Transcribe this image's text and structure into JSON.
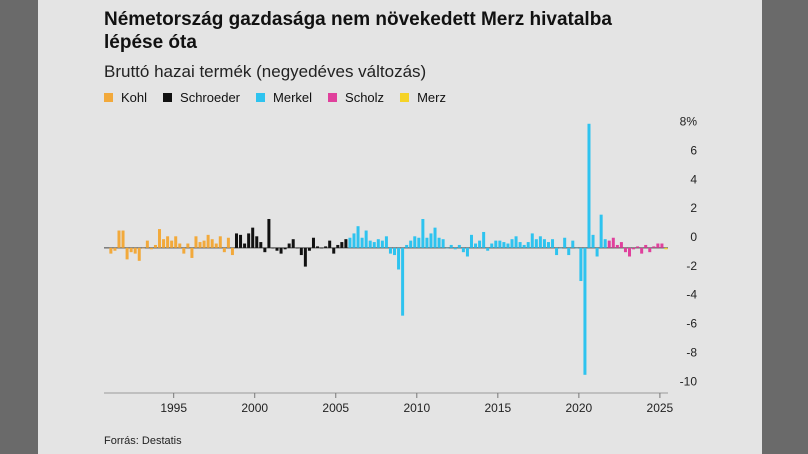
{
  "chart_data": {
    "type": "bar",
    "title": "Németország gazdasága nem növekedett Merz hivatalba lépése óta",
    "subtitle": "Bruttó hazai termék (negyedéves változás)",
    "source": "Forrás: Destatis",
    "xlim": [
      1990.7,
      2025.5
    ],
    "xticks": [
      1995,
      2000,
      2005,
      2010,
      2015,
      2020,
      2025
    ],
    "ylim": [
      -10.2,
      9
    ],
    "yticks": [
      {
        "value": 8,
        "label": "8%"
      },
      6,
      4,
      2,
      0,
      -2,
      -4,
      -6,
      -8,
      -10
    ],
    "series": [
      {
        "name": "Kohl",
        "color": "#f2a93b",
        "x": [
          1991.125,
          1991.375,
          1991.625,
          1991.875,
          1992.125,
          1992.375,
          1992.625,
          1992.875,
          1993.125,
          1993.375,
          1993.625,
          1993.875,
          1994.125,
          1994.375,
          1994.625,
          1994.875,
          1995.125,
          1995.375,
          1995.625,
          1995.875,
          1996.125,
          1996.375,
          1996.625,
          1996.875,
          1997.125,
          1997.375,
          1997.625,
          1997.875,
          1998.125,
          1998.375,
          1998.625
        ],
        "values": [
          -0.4,
          -0.2,
          1.2,
          1.2,
          -0.8,
          -0.3,
          -0.4,
          -0.9,
          0.0,
          0.5,
          -0.1,
          0.2,
          1.3,
          0.6,
          0.8,
          0.5,
          0.8,
          0.3,
          -0.4,
          0.3,
          -0.7,
          0.8,
          0.4,
          0.5,
          0.9,
          0.6,
          0.3,
          0.8,
          -0.3,
          0.7,
          -0.5
        ]
      },
      {
        "name": "Schroeder",
        "color": "#111111",
        "x": [
          1998.875,
          1999.125,
          1999.375,
          1999.625,
          1999.875,
          2000.125,
          2000.375,
          2000.625,
          2000.875,
          2001.125,
          2001.375,
          2001.625,
          2001.875,
          2002.125,
          2002.375,
          2002.625,
          2002.875,
          2003.125,
          2003.375,
          2003.625,
          2003.875,
          2004.125,
          2004.375,
          2004.625,
          2004.875,
          2005.125,
          2005.375,
          2005.625
        ],
        "values": [
          1.0,
          0.9,
          0.3,
          1.0,
          1.4,
          0.8,
          0.4,
          -0.3,
          2.0,
          0.0,
          -0.2,
          -0.4,
          -0.1,
          0.3,
          0.6,
          0.0,
          -0.5,
          -1.3,
          -0.2,
          0.7,
          0.1,
          0.0,
          0.1,
          0.5,
          -0.4,
          0.2,
          0.4,
          0.6
        ]
      },
      {
        "name": "Merkel",
        "color": "#2ec3ef",
        "x": [
          2005.875,
          2006.125,
          2006.375,
          2006.625,
          2006.875,
          2007.125,
          2007.375,
          2007.625,
          2007.875,
          2008.125,
          2008.375,
          2008.625,
          2008.875,
          2009.125,
          2009.375,
          2009.625,
          2009.875,
          2010.125,
          2010.375,
          2010.625,
          2010.875,
          2011.125,
          2011.375,
          2011.625,
          2011.875,
          2012.125,
          2012.375,
          2012.625,
          2012.875,
          2013.125,
          2013.375,
          2013.625,
          2013.875,
          2014.125,
          2014.375,
          2014.625,
          2014.875,
          2015.125,
          2015.375,
          2015.625,
          2015.875,
          2016.125,
          2016.375,
          2016.625,
          2016.875,
          2017.125,
          2017.375,
          2017.625,
          2017.875,
          2018.125,
          2018.375,
          2018.625,
          2018.875,
          2019.125,
          2019.375,
          2019.625,
          2019.875,
          2020.125,
          2020.375,
          2020.625,
          2020.875,
          2021.125,
          2021.375,
          2021.625
        ],
        "values": [
          0.7,
          1.0,
          1.5,
          0.7,
          1.2,
          0.5,
          0.4,
          0.6,
          0.5,
          0.8,
          -0.4,
          -0.5,
          -1.5,
          -4.7,
          0.2,
          0.5,
          0.8,
          0.7,
          2.0,
          0.7,
          1.0,
          1.4,
          0.7,
          0.6,
          0.0,
          0.2,
          -0.1,
          0.2,
          -0.3,
          -0.6,
          0.9,
          0.3,
          0.5,
          1.1,
          -0.2,
          0.3,
          0.5,
          0.5,
          0.4,
          0.3,
          0.6,
          0.8,
          0.4,
          0.2,
          0.4,
          1.0,
          0.6,
          0.8,
          0.6,
          0.4,
          0.6,
          -0.5,
          0.0,
          0.7,
          -0.5,
          0.5,
          0.0,
          -2.3,
          -8.8,
          8.6,
          0.9,
          -0.6,
          2.3,
          0.6
        ]
      },
      {
        "name": "Scholz",
        "color": "#e0409c",
        "x": [
          2021.875,
          2022.125,
          2022.375,
          2022.625,
          2022.875,
          2023.125,
          2023.375,
          2023.625,
          2023.875,
          2024.125,
          2024.375,
          2024.625,
          2024.875,
          2025.125
        ],
        "values": [
          0.5,
          0.7,
          0.2,
          0.4,
          -0.3,
          -0.6,
          -0.1,
          0.1,
          -0.4,
          0.2,
          -0.3,
          0.1,
          0.3,
          0.3
        ]
      },
      {
        "name": "Merz",
        "color": "#f5d327",
        "x": [
          2025.375
        ],
        "values": [
          -0.1
        ]
      }
    ]
  }
}
